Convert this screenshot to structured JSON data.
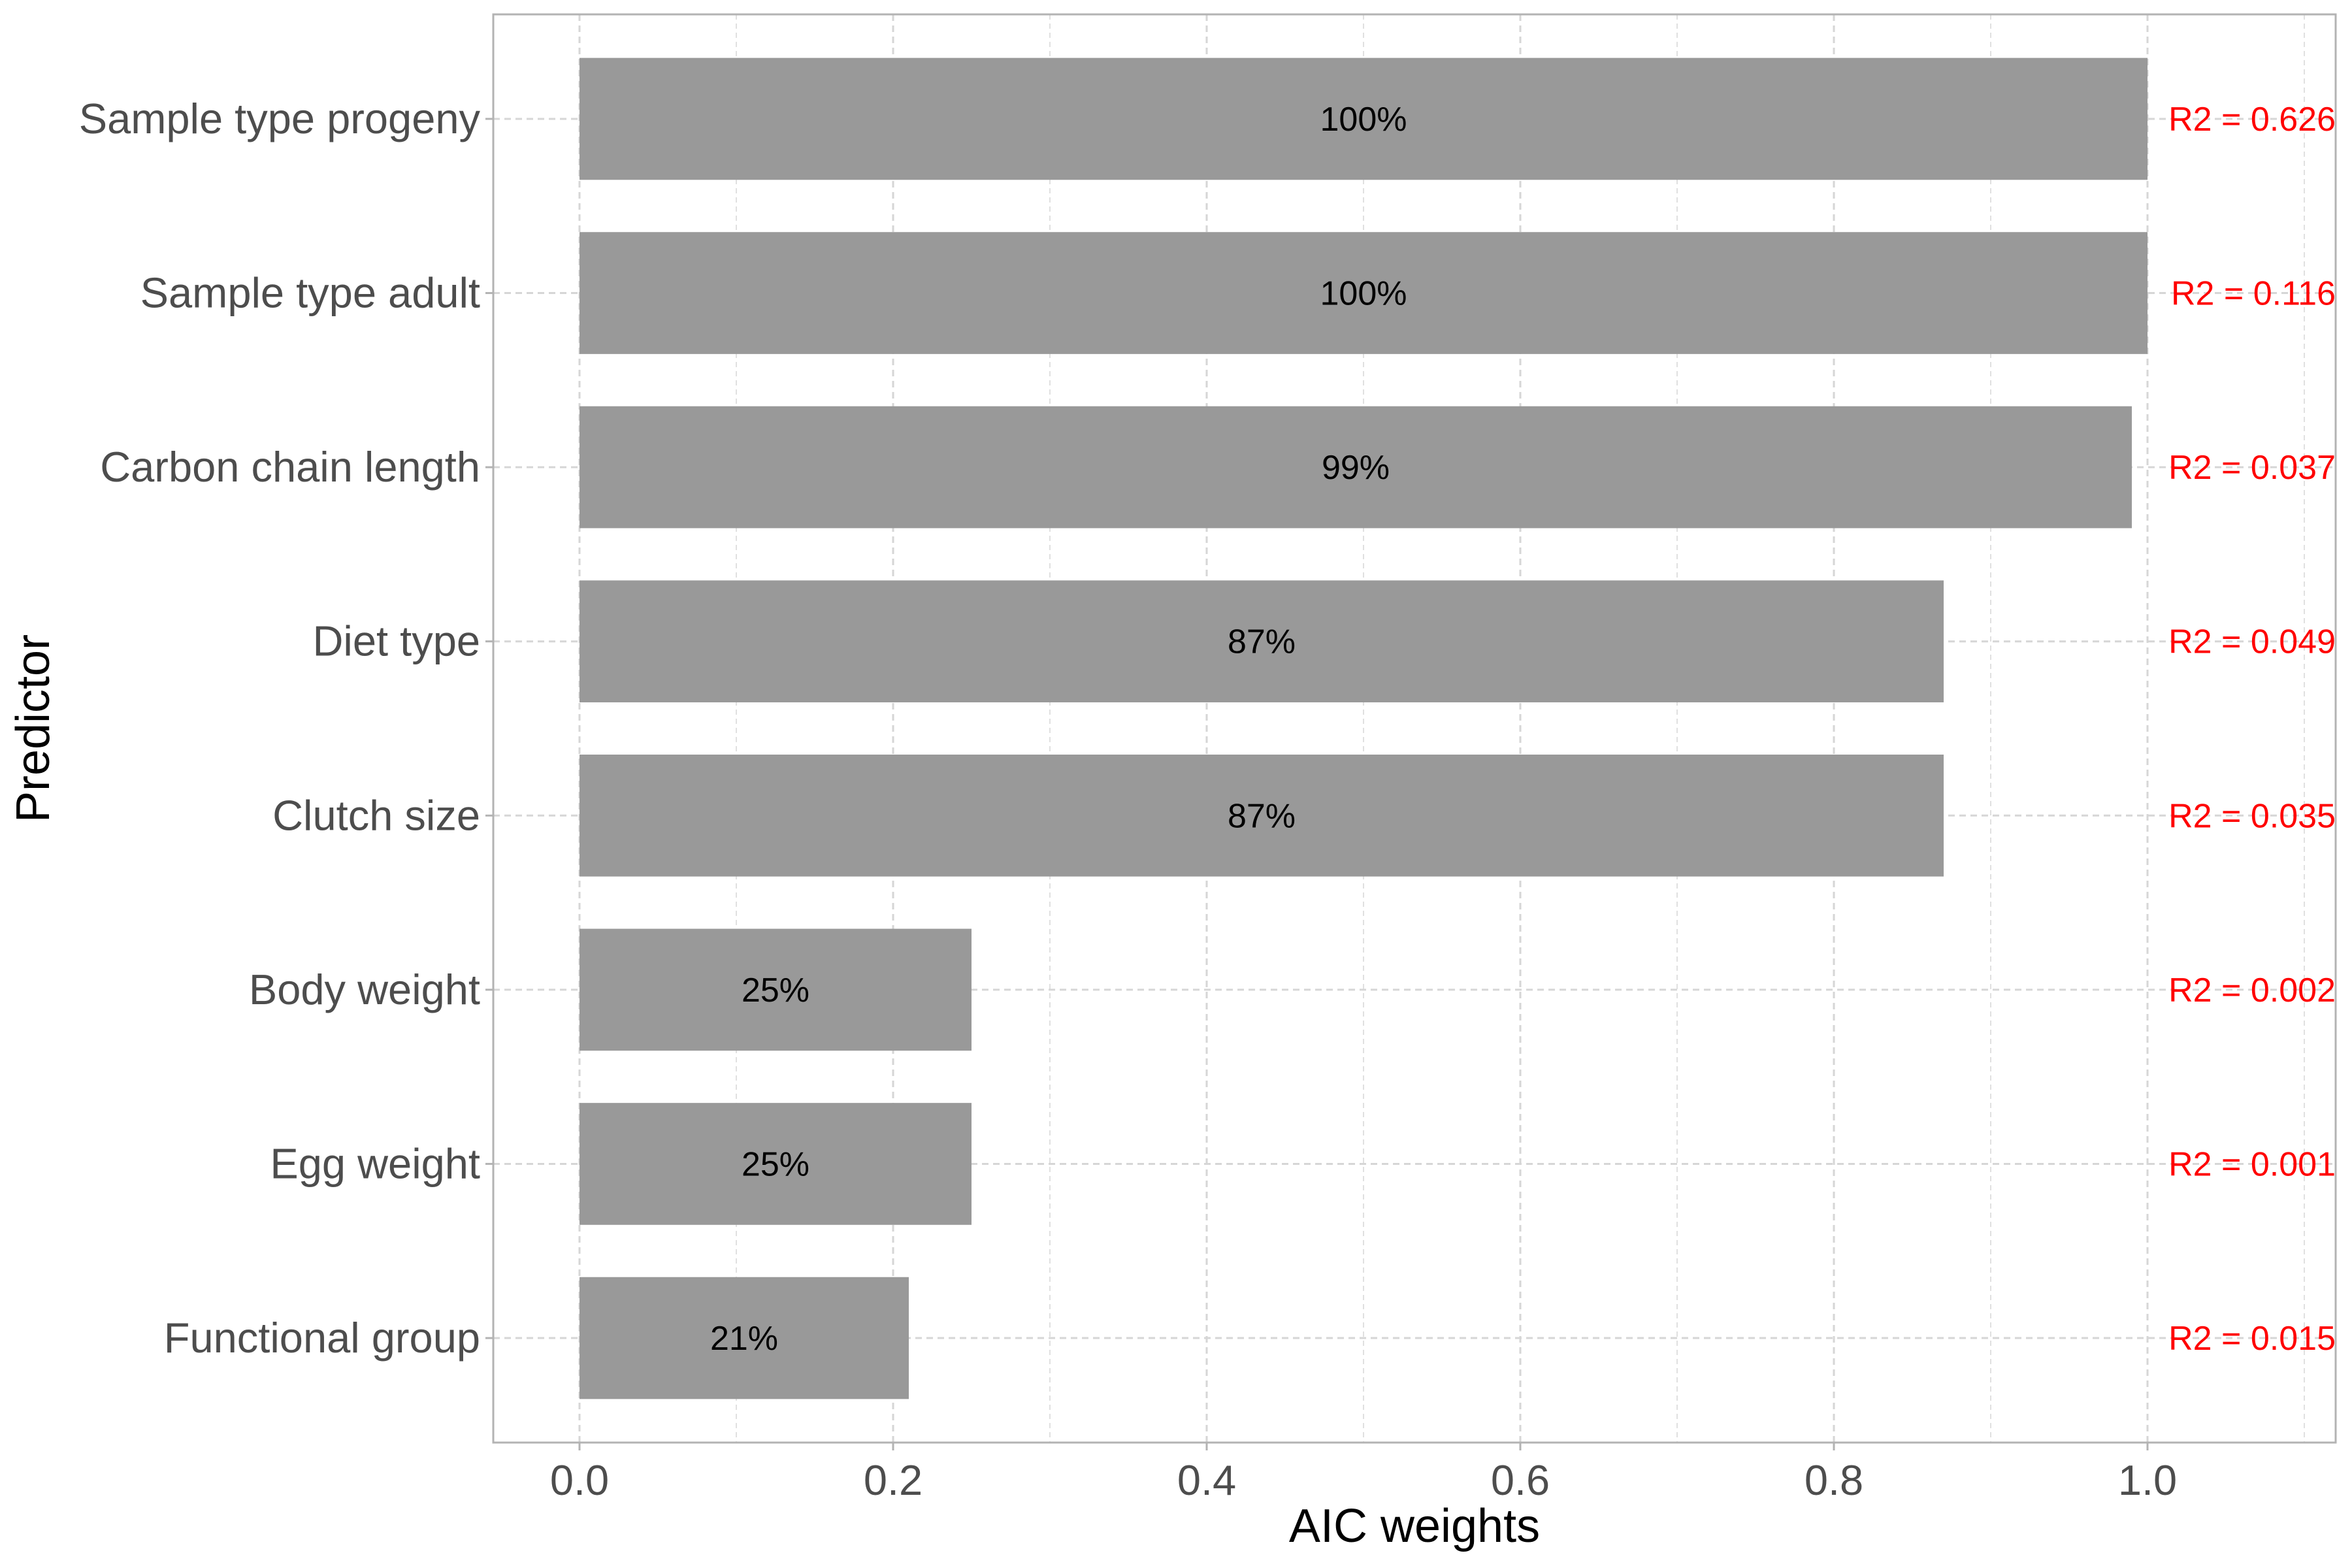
{
  "chart_data": {
    "type": "bar",
    "orientation": "horizontal",
    "xlabel": "AIC weights",
    "ylabel": "Predictor",
    "xlim": [
      -0.055,
      1.12
    ],
    "xticks": [
      "0.0",
      "0.2",
      "0.4",
      "0.6",
      "0.8",
      "1.0"
    ],
    "xtick_values": [
      0.0,
      0.2,
      0.4,
      0.6,
      0.8,
      1.0
    ],
    "grid": true,
    "bar_color": "#999999",
    "r2_color": "#ff0000",
    "categories": [
      "Sample type progeny",
      "Sample type adult",
      "Carbon chain length",
      "Diet type",
      "Clutch size",
      "Body weight",
      "Egg weight",
      "Functional group"
    ],
    "values": [
      1.0,
      1.0,
      0.99,
      0.87,
      0.87,
      0.25,
      0.25,
      0.21
    ],
    "bar_labels": [
      "100%",
      "100%",
      "99%",
      "87%",
      "87%",
      "25%",
      "25%",
      "21%"
    ],
    "r2_labels": [
      "R2 = 0.626",
      "R2 = 0.116",
      "R2 = 0.037",
      "R2 = 0.049",
      "R2 = 0.035",
      "R2 = 0.002",
      "R2 = 0.001",
      "R2 = 0.015"
    ]
  }
}
